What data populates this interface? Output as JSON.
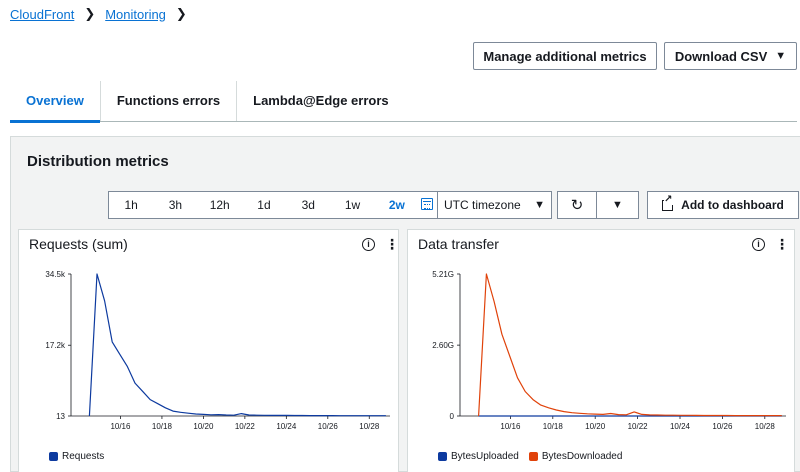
{
  "breadcrumb": {
    "item1": "CloudFront",
    "item2": "Monitoring"
  },
  "buttons": {
    "manage": "Manage additional metrics",
    "download": "Download CSV"
  },
  "tabs": [
    "Overview",
    "Functions errors",
    "Lambda@Edge errors"
  ],
  "container": {
    "title": "Distribution metrics"
  },
  "time_range": {
    "items": [
      "1h",
      "3h",
      "12h",
      "1d",
      "3d",
      "1w",
      "2w"
    ],
    "selected": "2w"
  },
  "timezone": "UTC timezone",
  "add_dashboard": "Add to dashboard",
  "icons": {
    "calendar": "calendar-icon",
    "refresh": "refresh-icon",
    "info": "info-icon",
    "menu": "kebab-menu-icon",
    "external": "external-link-icon"
  },
  "colors": {
    "blue": "#0d3a9f",
    "orange": "#e0420a",
    "accent": "#0972d3"
  },
  "chart_data": [
    {
      "type": "line",
      "title": "Requests (sum)",
      "ytick_labels": [
        "34.5k",
        "17.2k",
        "13"
      ],
      "ytick_values": [
        34500,
        17200,
        13
      ],
      "ylim": [
        13,
        34500
      ],
      "xtick_labels": [
        "10/16",
        "10/18",
        "10/20",
        "10/22",
        "10/24",
        "10/26",
        "10/28"
      ],
      "x_range_days": [
        "10/14",
        "10/29"
      ],
      "series": [
        {
          "name": "Requests",
          "color": "#0d3a9f",
          "values": [
            13,
            34500,
            28000,
            18000,
            15000,
            12000,
            8000,
            6000,
            4000,
            3000,
            2000,
            1200,
            900,
            700,
            500,
            400,
            300,
            350,
            250,
            200,
            600,
            250,
            200,
            180,
            170,
            160,
            150,
            140,
            130,
            120,
            110,
            100,
            100,
            95,
            90,
            90,
            85,
            85,
            80,
            80
          ]
        }
      ]
    },
    {
      "type": "line",
      "title": "Data transfer",
      "ytick_labels": [
        "5.21G",
        "2.60G",
        "0"
      ],
      "ytick_values": [
        5210000000,
        2600000000,
        0
      ],
      "ylim": [
        0,
        5210000000
      ],
      "xtick_labels": [
        "10/16",
        "10/18",
        "10/20",
        "10/22",
        "10/24",
        "10/26",
        "10/28"
      ],
      "x_range_days": [
        "10/14",
        "10/29"
      ],
      "series": [
        {
          "name": "BytesUploaded",
          "color": "#0d3a9f",
          "values": [
            0,
            0,
            0,
            0,
            0,
            0,
            0,
            0,
            0,
            0,
            0,
            0,
            0,
            0,
            0,
            0,
            0,
            0,
            0,
            0,
            0,
            0,
            0,
            0,
            0,
            0,
            0,
            0,
            0,
            0,
            0,
            0,
            0,
            0,
            0,
            0,
            0,
            0,
            0,
            0
          ]
        },
        {
          "name": "BytesDownloaded",
          "color": "#e0420a",
          "values": [
            0,
            5210000000,
            4200000000,
            3000000000,
            2200000000,
            1400000000,
            900000000,
            600000000,
            400000000,
            300000000,
            220000000,
            160000000,
            120000000,
            100000000,
            80000000,
            70000000,
            60000000,
            90000000,
            50000000,
            45000000,
            150000000,
            60000000,
            40000000,
            35000000,
            30000000,
            28000000,
            26000000,
            24000000,
            22000000,
            20000000,
            20000000,
            18000000,
            17000000,
            16000000,
            15000000,
            15000000,
            14000000,
            14000000,
            13000000,
            13000000
          ]
        }
      ]
    }
  ]
}
